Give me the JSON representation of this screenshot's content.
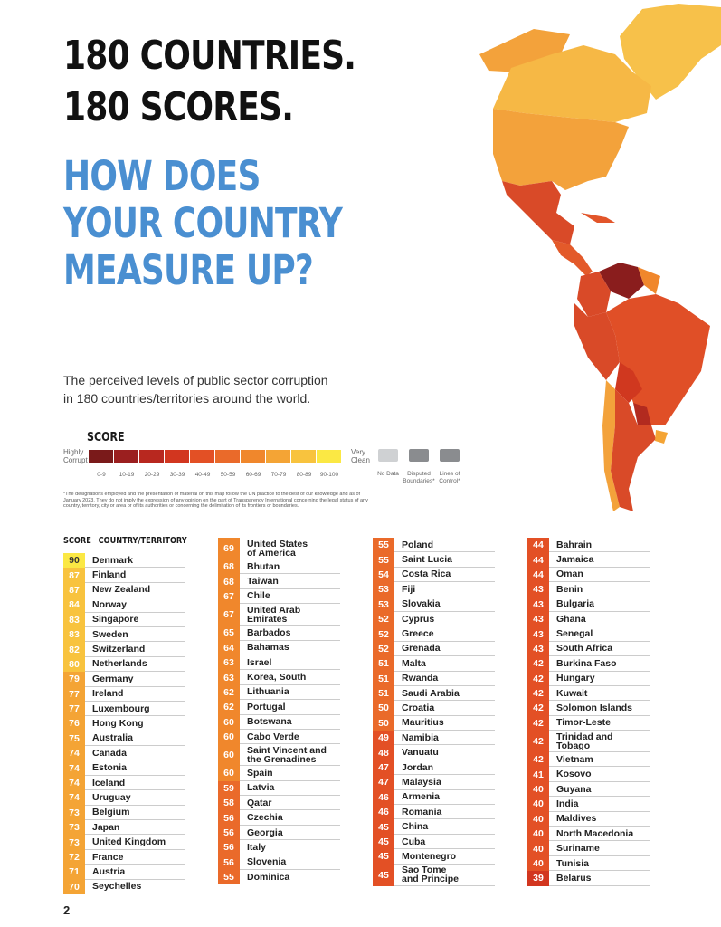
{
  "heading": {
    "line1": "180 COUNTRIES.",
    "line2": "180 SCORES.",
    "line3": "HOW DOES",
    "line4": "YOUR COUNTRY",
    "line5": "MEASURE UP?"
  },
  "intro": {
    "line1": "The perceived levels of public sector corruption",
    "line2": "in 180 countries/territories around the world."
  },
  "legend": {
    "title": "SCORE",
    "left_label": [
      "Highly",
      "Corrupt"
    ],
    "right_label": [
      "Very",
      "Clean"
    ],
    "bins": [
      {
        "label": "0-9",
        "color": "#7a1a1a"
      },
      {
        "label": "10-19",
        "color": "#9b1f1f"
      },
      {
        "label": "20-29",
        "color": "#b8281f"
      },
      {
        "label": "30-39",
        "color": "#d2361f"
      },
      {
        "label": "40-49",
        "color": "#e35025"
      },
      {
        "label": "50-59",
        "color": "#ea6a2a"
      },
      {
        "label": "60-69",
        "color": "#f0872c"
      },
      {
        "label": "70-79",
        "color": "#f4a435"
      },
      {
        "label": "80-89",
        "color": "#f8c33e"
      },
      {
        "label": "90-100",
        "color": "#fbe844"
      }
    ],
    "no_data": "No Data",
    "disputed": [
      "Disputed",
      "Boundaries*"
    ],
    "lines_of_control": [
      "Lines of",
      "Control*"
    ]
  },
  "disclaimer": "*The designations employed and the presentation of material on this map follow the UN practice to the best of our knowledge and as of January 2023. They do not imply the expression of any opinion on the part of Transparency International concerning the legal status of any country, territory, city or area or of its authorities or concerning the delimitation of its frontiers or boundaries.",
  "table_header": {
    "score": "SCORE",
    "country": "COUNTRY/TERRITORY"
  },
  "columns": [
    [
      {
        "score": 90,
        "name": "Denmark"
      },
      {
        "score": 87,
        "name": "Finland"
      },
      {
        "score": 87,
        "name": "New Zealand"
      },
      {
        "score": 84,
        "name": "Norway"
      },
      {
        "score": 83,
        "name": "Singapore"
      },
      {
        "score": 83,
        "name": "Sweden"
      },
      {
        "score": 82,
        "name": "Switzerland"
      },
      {
        "score": 80,
        "name": "Netherlands"
      },
      {
        "score": 79,
        "name": "Germany"
      },
      {
        "score": 77,
        "name": "Ireland"
      },
      {
        "score": 77,
        "name": "Luxembourg"
      },
      {
        "score": 76,
        "name": "Hong Kong"
      },
      {
        "score": 75,
        "name": "Australia"
      },
      {
        "score": 74,
        "name": "Canada"
      },
      {
        "score": 74,
        "name": "Estonia"
      },
      {
        "score": 74,
        "name": "Iceland"
      },
      {
        "score": 74,
        "name": "Uruguay"
      },
      {
        "score": 73,
        "name": "Belgium"
      },
      {
        "score": 73,
        "name": "Japan"
      },
      {
        "score": 73,
        "name": "United Kingdom"
      },
      {
        "score": 72,
        "name": "France"
      },
      {
        "score": 71,
        "name": "Austria"
      },
      {
        "score": 70,
        "name": "Seychelles"
      }
    ],
    [
      {
        "score": 69,
        "name": "United States of America",
        "lines": [
          "United States",
          "of America"
        ]
      },
      {
        "score": 68,
        "name": "Bhutan"
      },
      {
        "score": 68,
        "name": "Taiwan"
      },
      {
        "score": 67,
        "name": "Chile"
      },
      {
        "score": 67,
        "name": "United Arab Emirates",
        "lines": [
          "United Arab",
          "Emirates"
        ]
      },
      {
        "score": 65,
        "name": "Barbados"
      },
      {
        "score": 64,
        "name": "Bahamas"
      },
      {
        "score": 63,
        "name": "Israel"
      },
      {
        "score": 63,
        "name": "Korea, South"
      },
      {
        "score": 62,
        "name": "Lithuania"
      },
      {
        "score": 62,
        "name": "Portugal"
      },
      {
        "score": 60,
        "name": "Botswana"
      },
      {
        "score": 60,
        "name": "Cabo Verde"
      },
      {
        "score": 60,
        "name": "Saint Vincent and the Grenadines",
        "lines": [
          "Saint Vincent and",
          "the Grenadines"
        ]
      },
      {
        "score": 60,
        "name": "Spain"
      },
      {
        "score": 59,
        "name": "Latvia"
      },
      {
        "score": 58,
        "name": "Qatar"
      },
      {
        "score": 56,
        "name": "Czechia"
      },
      {
        "score": 56,
        "name": "Georgia"
      },
      {
        "score": 56,
        "name": "Italy"
      },
      {
        "score": 56,
        "name": "Slovenia"
      },
      {
        "score": 55,
        "name": "Dominica"
      }
    ],
    [
      {
        "score": 55,
        "name": "Poland"
      },
      {
        "score": 55,
        "name": "Saint Lucia"
      },
      {
        "score": 54,
        "name": "Costa Rica"
      },
      {
        "score": 53,
        "name": "Fiji"
      },
      {
        "score": 53,
        "name": "Slovakia"
      },
      {
        "score": 52,
        "name": "Cyprus"
      },
      {
        "score": 52,
        "name": "Greece"
      },
      {
        "score": 52,
        "name": "Grenada"
      },
      {
        "score": 51,
        "name": "Malta"
      },
      {
        "score": 51,
        "name": "Rwanda"
      },
      {
        "score": 51,
        "name": "Saudi Arabia"
      },
      {
        "score": 50,
        "name": "Croatia"
      },
      {
        "score": 50,
        "name": "Mauritius"
      },
      {
        "score": 49,
        "name": "Namibia"
      },
      {
        "score": 48,
        "name": "Vanuatu"
      },
      {
        "score": 47,
        "name": "Jordan"
      },
      {
        "score": 47,
        "name": "Malaysia"
      },
      {
        "score": 46,
        "name": "Armenia"
      },
      {
        "score": 46,
        "name": "Romania"
      },
      {
        "score": 45,
        "name": "China"
      },
      {
        "score": 45,
        "name": "Cuba"
      },
      {
        "score": 45,
        "name": "Montenegro"
      },
      {
        "score": 45,
        "name": "Sao Tome and Principe",
        "lines": [
          "Sao Tome",
          "and Principe"
        ]
      }
    ],
    [
      {
        "score": 44,
        "name": "Bahrain"
      },
      {
        "score": 44,
        "name": "Jamaica"
      },
      {
        "score": 44,
        "name": "Oman"
      },
      {
        "score": 43,
        "name": "Benin"
      },
      {
        "score": 43,
        "name": "Bulgaria"
      },
      {
        "score": 43,
        "name": "Ghana"
      },
      {
        "score": 43,
        "name": "Senegal"
      },
      {
        "score": 43,
        "name": "South Africa"
      },
      {
        "score": 42,
        "name": "Burkina Faso"
      },
      {
        "score": 42,
        "name": "Hungary"
      },
      {
        "score": 42,
        "name": "Kuwait"
      },
      {
        "score": 42,
        "name": "Solomon Islands"
      },
      {
        "score": 42,
        "name": "Timor-Leste"
      },
      {
        "score": 42,
        "name": "Trinidad and Tobago",
        "lines": [
          "Trinidad and",
          "Tobago"
        ]
      },
      {
        "score": 42,
        "name": "Vietnam"
      },
      {
        "score": 41,
        "name": "Kosovo"
      },
      {
        "score": 40,
        "name": "Guyana"
      },
      {
        "score": 40,
        "name": "India"
      },
      {
        "score": 40,
        "name": "Maldives"
      },
      {
        "score": 40,
        "name": "North Macedonia"
      },
      {
        "score": 40,
        "name": "Suriname"
      },
      {
        "score": 40,
        "name": "Tunisia"
      },
      {
        "score": 39,
        "name": "Belarus"
      }
    ]
  ],
  "page_number": "2"
}
